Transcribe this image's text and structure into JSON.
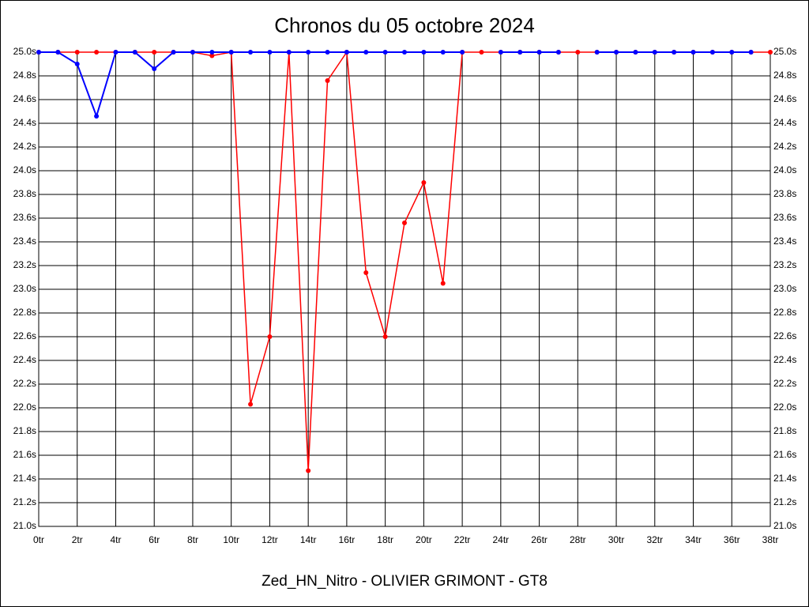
{
  "chart_data": {
    "type": "line",
    "title": "Chronos du 05 octobre 2024",
    "xlabel": "Zed_HN_Nitro - OLIVIER GRIMONT - GT8",
    "x": [
      0,
      1,
      2,
      3,
      4,
      5,
      6,
      7,
      8,
      9,
      10,
      11,
      12,
      13,
      14,
      15,
      16,
      17,
      18,
      19,
      20,
      21,
      22,
      23,
      24,
      25,
      26,
      27,
      28,
      29,
      30,
      31,
      32,
      33,
      34,
      35,
      36,
      37,
      38
    ],
    "series": [
      {
        "color": "#ff0000",
        "values": [
          25,
          25,
          25,
          25,
          25,
          25,
          25,
          25,
          25,
          24.97,
          25,
          22.03,
          22.6,
          25,
          21.47,
          24.76,
          25,
          23.14,
          22.6,
          23.56,
          23.9,
          23.05,
          25,
          25,
          25,
          25,
          25,
          25,
          25,
          25,
          25,
          25,
          25,
          25,
          25,
          25,
          25,
          25,
          25
        ]
      },
      {
        "color": "#0000ff",
        "values": [
          25,
          25,
          24.9,
          24.46,
          25,
          25,
          24.86,
          25,
          25,
          25,
          25,
          25,
          25,
          25,
          25,
          25,
          25,
          25,
          25,
          25,
          25,
          25,
          25,
          null,
          25,
          25,
          25,
          25,
          null,
          25,
          25,
          25,
          25,
          25,
          25,
          25,
          25,
          25,
          null
        ]
      }
    ],
    "xlim": [
      0,
      38
    ],
    "ylim": [
      21,
      25
    ],
    "xticks": [
      {
        "value": 0,
        "label": "0tr"
      },
      {
        "value": 2,
        "label": "2tr"
      },
      {
        "value": 4,
        "label": "4tr"
      },
      {
        "value": 6,
        "label": "6tr"
      },
      {
        "value": 8,
        "label": "8tr"
      },
      {
        "value": 10,
        "label": "10tr"
      },
      {
        "value": 12,
        "label": "12tr"
      },
      {
        "value": 14,
        "label": "14tr"
      },
      {
        "value": 16,
        "label": "16tr"
      },
      {
        "value": 18,
        "label": "18tr"
      },
      {
        "value": 20,
        "label": "20tr"
      },
      {
        "value": 22,
        "label": "22tr"
      },
      {
        "value": 24,
        "label": "24tr"
      },
      {
        "value": 26,
        "label": "26tr"
      },
      {
        "value": 28,
        "label": "28tr"
      },
      {
        "value": 30,
        "label": "30tr"
      },
      {
        "value": 32,
        "label": "32tr"
      },
      {
        "value": 34,
        "label": "34tr"
      },
      {
        "value": 36,
        "label": "36tr"
      },
      {
        "value": 38,
        "label": "38tr"
      }
    ],
    "yticks": [
      {
        "value": 21,
        "label": "21.0s"
      },
      {
        "value": 21.2,
        "label": "21.2s"
      },
      {
        "value": 21.4,
        "label": "21.4s"
      },
      {
        "value": 21.6,
        "label": "21.6s"
      },
      {
        "value": 21.8,
        "label": "21.8s"
      },
      {
        "value": 22,
        "label": "22.0s"
      },
      {
        "value": 22.2,
        "label": "22.2s"
      },
      {
        "value": 22.4,
        "label": "22.4s"
      },
      {
        "value": 22.6,
        "label": "22.6s"
      },
      {
        "value": 22.8,
        "label": "22.8s"
      },
      {
        "value": 23,
        "label": "23.0s"
      },
      {
        "value": 23.2,
        "label": "23.2s"
      },
      {
        "value": 23.4,
        "label": "23.4s"
      },
      {
        "value": 23.6,
        "label": "23.6s"
      },
      {
        "value": 23.8,
        "label": "23.8s"
      },
      {
        "value": 24,
        "label": "24.0s"
      },
      {
        "value": 24.2,
        "label": "24.2s"
      },
      {
        "value": 24.4,
        "label": "24.4s"
      },
      {
        "value": 24.6,
        "label": "24.6s"
      },
      {
        "value": 24.8,
        "label": "24.8s"
      },
      {
        "value": 25,
        "label": "25.0s"
      }
    ],
    "grid": true
  }
}
